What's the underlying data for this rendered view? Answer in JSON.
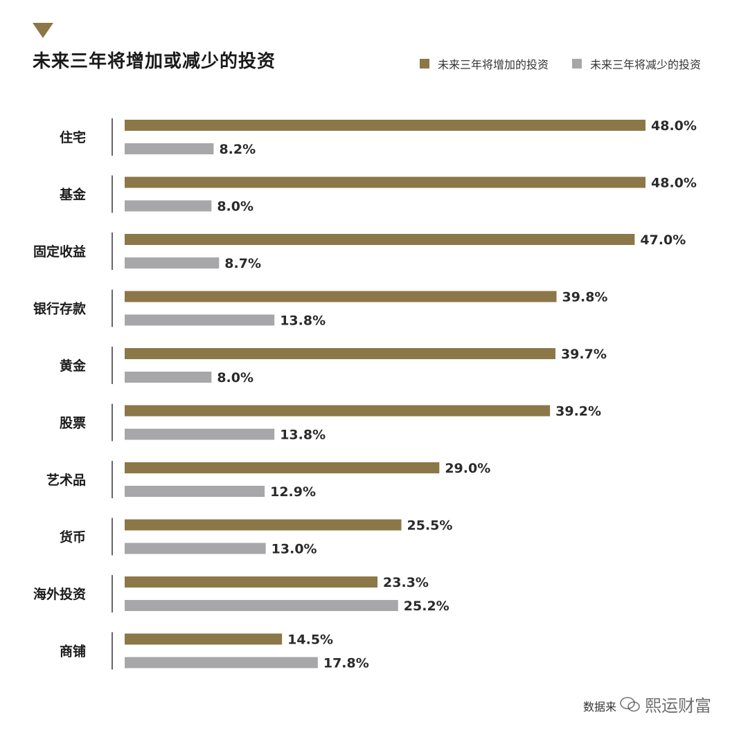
{
  "header": {
    "title": "未来三年将增加或减少的投资"
  },
  "colors": {
    "increase": "#8b7748",
    "decrease": "#a7a7aa",
    "axis": "#333333"
  },
  "footer": {
    "source": "数据来",
    "watermark": "熙运财富"
  },
  "chart_data": {
    "type": "bar",
    "orientation": "horizontal",
    "title": "未来三年将增加或减少的投资",
    "legend_position": "top-right",
    "grid": false,
    "xlim": [
      0,
      48
    ],
    "categories": [
      "住宅",
      "基金",
      "固定收益",
      "银行存款",
      "黄金",
      "股票",
      "艺术品",
      "货币",
      "海外投资",
      "商铺"
    ],
    "series": [
      {
        "name": "未来三年将增加的投资",
        "values": [
          48.0,
          48.0,
          47.0,
          39.8,
          39.7,
          39.2,
          29.0,
          25.5,
          23.3,
          14.5
        ],
        "labels": [
          "48.0%",
          "48.0%",
          "47.0%",
          "39.8%",
          "39.7%",
          "39.2%",
          "29.0%",
          "25.5%",
          "23.3%",
          "14.5%"
        ]
      },
      {
        "name": "未来三年将减少的投资",
        "values": [
          8.2,
          8.0,
          8.7,
          13.8,
          8.0,
          13.8,
          12.9,
          13.0,
          25.2,
          17.8
        ],
        "labels": [
          "8.2%",
          "8.0%",
          "8.7%",
          "13.8%",
          "8.0%",
          "13.8%",
          "12.9%",
          "13.0%",
          "25.2%",
          "17.8%"
        ]
      }
    ]
  }
}
